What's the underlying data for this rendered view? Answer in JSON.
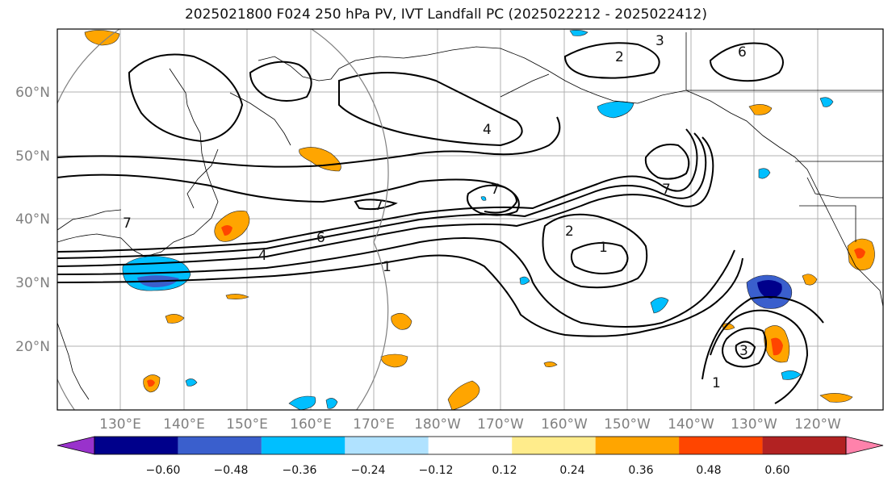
{
  "title": "2025021800 F024 250 hPa PV, IVT Landfall PC (2025022212 - 2025022412)",
  "lat_labels": [
    "60°N",
    "50°N",
    "40°N",
    "30°N",
    "20°N"
  ],
  "lon_labels": [
    "130°E",
    "140°E",
    "150°E",
    "160°E",
    "170°E",
    "180°W",
    "170°W",
    "160°W",
    "150°W",
    "140°W",
    "130°W",
    "120°W"
  ],
  "colorbar": {
    "colors": [
      "#9932cc",
      "#00008b",
      "#3a5fcd",
      "#00bfff",
      "#b0e2ff",
      "#ffffff",
      "#ffec8b",
      "#ffa500",
      "#ff4500",
      "#b22222",
      "#ff82ab"
    ],
    "tick_labels": [
      "−0.60",
      "−0.48",
      "−0.36",
      "−0.24",
      "−0.12",
      "0.12",
      "0.24",
      "0.36",
      "0.48",
      "0.60"
    ]
  },
  "contour_labels": {
    "c1": "1",
    "c2": "2",
    "c3": "3",
    "c4": "4",
    "c6": "6",
    "c7": "7"
  }
}
